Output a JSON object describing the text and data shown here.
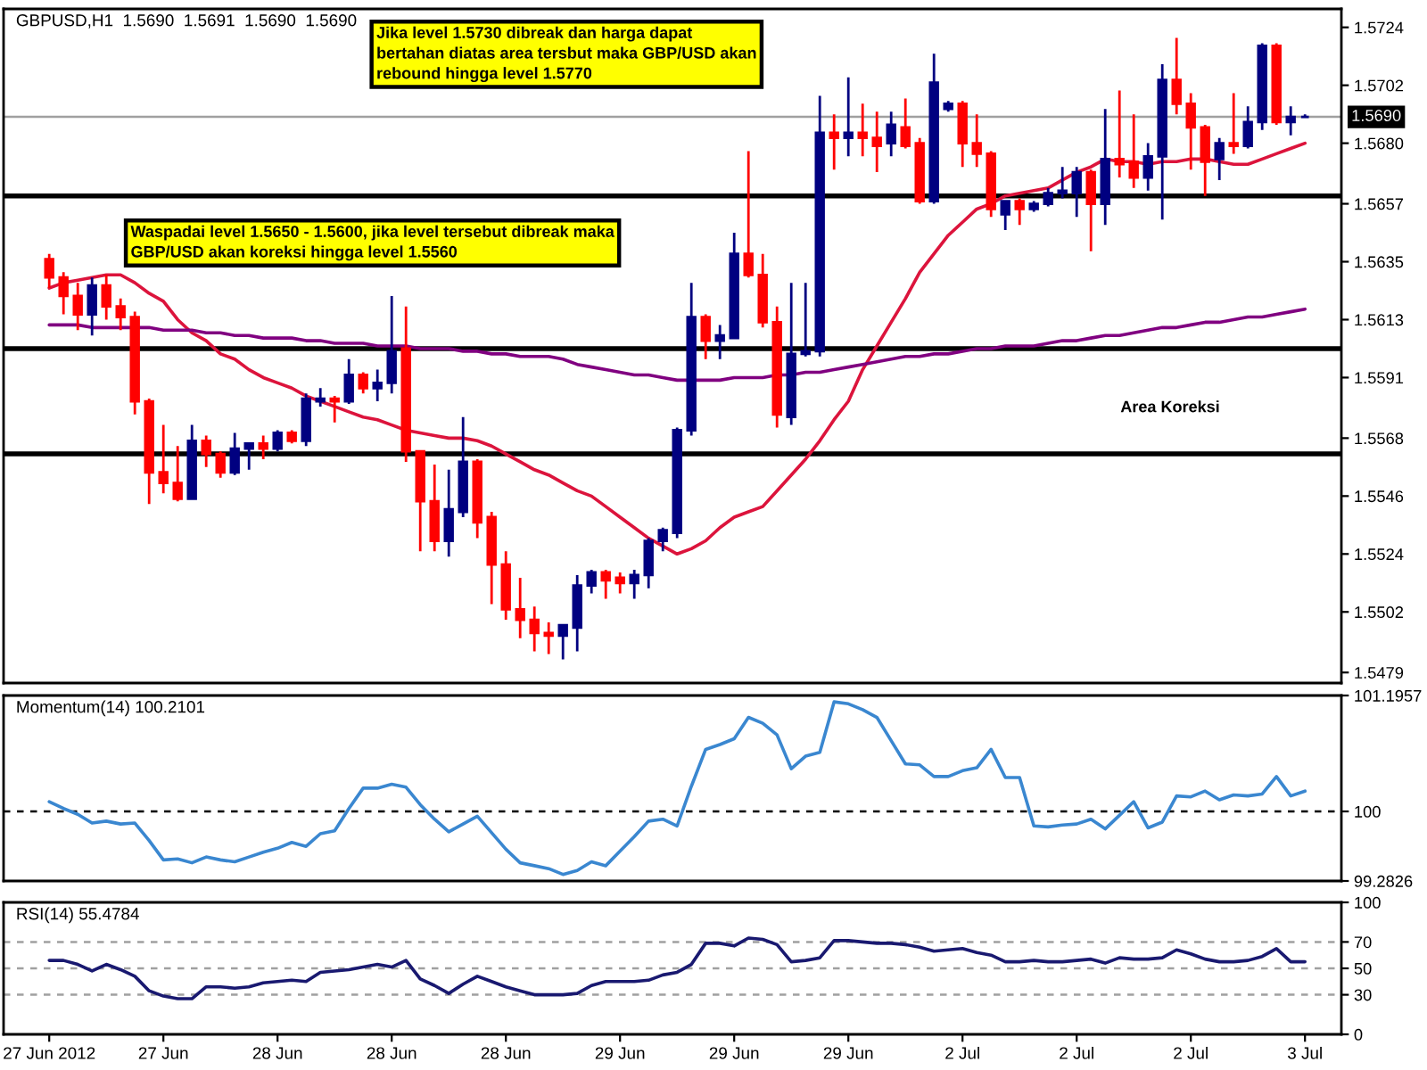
{
  "chart_data": [
    {
      "type": "candlestick",
      "title": "GBPUSD,H1  1.5690  1.5691  1.5690  1.5690",
      "categories": [
        null,
        null,
        null,
        null,
        null,
        null,
        null,
        null,
        null,
        null,
        null,
        null,
        null,
        null,
        null,
        null,
        null,
        null,
        null,
        null,
        null,
        null,
        null,
        null,
        null,
        null,
        null,
        null,
        null,
        null,
        null,
        null,
        null,
        null,
        null,
        null,
        null,
        null,
        null,
        null,
        null,
        null,
        null,
        null,
        null,
        null,
        null,
        null,
        null,
        null,
        null,
        null,
        null,
        null,
        null,
        null,
        null,
        null,
        null,
        null,
        null,
        null,
        null,
        null,
        null,
        null,
        null,
        null,
        null,
        null,
        null,
        null,
        null,
        null,
        null,
        null,
        null,
        null,
        null,
        null,
        null,
        null,
        null,
        null,
        null,
        null,
        null,
        null,
        null
      ],
      "ohlc": [
        [
          1.5636,
          1.5638,
          1.5625,
          1.5629
        ],
        [
          1.5629,
          1.5631,
          1.5615,
          1.5622
        ],
        [
          1.5622,
          1.5627,
          1.5609,
          1.5615
        ],
        [
          1.5615,
          1.5629,
          1.5607,
          1.5626
        ],
        [
          1.5626,
          1.563,
          1.5613,
          1.5618
        ],
        [
          1.5618,
          1.5621,
          1.5609,
          1.5614
        ],
        [
          1.5614,
          1.5616,
          1.5577,
          1.5582
        ],
        [
          1.5582,
          1.5583,
          1.5543,
          1.5555
        ],
        [
          1.5555,
          1.5573,
          1.5547,
          1.5551
        ],
        [
          1.5551,
          1.5565,
          1.5544,
          1.5545
        ],
        [
          1.5545,
          1.5573,
          1.5545,
          1.5567
        ],
        [
          1.5567,
          1.5569,
          1.5557,
          1.5562
        ],
        [
          1.5562,
          1.5563,
          1.5553,
          1.5555
        ],
        [
          1.5555,
          1.557,
          1.5554,
          1.5564
        ],
        [
          1.5564,
          1.5566,
          1.5556,
          1.5566
        ],
        [
          1.5566,
          1.5569,
          1.556,
          1.5564
        ],
        [
          1.5564,
          1.5571,
          1.5563,
          1.557
        ],
        [
          1.557,
          1.5571,
          1.5566,
          1.5567
        ],
        [
          1.5567,
          1.5585,
          1.5565,
          1.5583
        ],
        [
          1.5582,
          1.5587,
          1.558,
          1.5583
        ],
        [
          1.5583,
          1.5584,
          1.5574,
          1.5582
        ],
        [
          1.5582,
          1.5598,
          1.5581,
          1.5592
        ],
        [
          1.5592,
          1.5593,
          1.5585,
          1.5587
        ],
        [
          1.5587,
          1.5594,
          1.5582,
          1.5589
        ],
        [
          1.5589,
          1.5622,
          1.5585,
          1.5601
        ],
        [
          1.5602,
          1.5618,
          1.5559,
          1.5563
        ],
        [
          1.5563,
          1.5563,
          1.5525,
          1.5544
        ],
        [
          1.5544,
          1.5558,
          1.5525,
          1.5529
        ],
        [
          1.5529,
          1.5556,
          1.5523,
          1.5541
        ],
        [
          1.554,
          1.5576,
          1.5538,
          1.5559
        ],
        [
          1.5559,
          1.556,
          1.553,
          1.5536
        ],
        [
          1.5538,
          1.554,
          1.5505,
          1.552
        ],
        [
          1.552,
          1.5525,
          1.5499,
          1.5503
        ],
        [
          1.5503,
          1.5515,
          1.5492,
          1.5499
        ],
        [
          1.5499,
          1.5504,
          1.5487,
          1.5494
        ],
        [
          1.5494,
          1.5498,
          1.5486,
          1.5493
        ],
        [
          1.5493,
          1.5497,
          1.5484,
          1.5497
        ],
        [
          1.5496,
          1.5516,
          1.5487,
          1.5512
        ],
        [
          1.5512,
          1.5518,
          1.5509,
          1.5517
        ],
        [
          1.5517,
          1.5518,
          1.5507,
          1.5514
        ],
        [
          1.5515,
          1.5517,
          1.5509,
          1.5513
        ],
        [
          1.5513,
          1.5518,
          1.5507,
          1.5516
        ],
        [
          1.5516,
          1.553,
          1.5511,
          1.5529
        ],
        [
          1.5529,
          1.5534,
          1.5525,
          1.5533
        ],
        [
          1.5532,
          1.5572,
          1.553,
          1.5571
        ],
        [
          1.5571,
          1.5627,
          1.5569,
          1.5614
        ],
        [
          1.5614,
          1.5615,
          1.5598,
          1.5605
        ],
        [
          1.5605,
          1.5611,
          1.5598,
          1.5607
        ],
        [
          1.5606,
          1.5646,
          1.5606,
          1.5638
        ],
        [
          1.5638,
          1.5677,
          1.5629,
          1.563
        ],
        [
          1.563,
          1.5638,
          1.561,
          1.5612
        ],
        [
          1.5612,
          1.5618,
          1.5572,
          1.5577
        ],
        [
          1.5576,
          1.5627,
          1.5573,
          1.56
        ],
        [
          1.56,
          1.5627,
          1.5599,
          1.5601
        ],
        [
          1.5601,
          1.5698,
          1.5599,
          1.5684
        ],
        [
          1.5684,
          1.5691,
          1.567,
          1.5682
        ],
        [
          1.5682,
          1.5705,
          1.5675,
          1.5684
        ],
        [
          1.5684,
          1.5695,
          1.5675,
          1.5682
        ],
        [
          1.5682,
          1.5692,
          1.5669,
          1.5679
        ],
        [
          1.568,
          1.5692,
          1.5675,
          1.5687
        ],
        [
          1.5686,
          1.5697,
          1.5678,
          1.5679
        ],
        [
          1.568,
          1.5682,
          1.5657,
          1.5658
        ],
        [
          1.5658,
          1.5714,
          1.5657,
          1.5703
        ],
        [
          1.5693,
          1.5696,
          1.5692,
          1.5695
        ],
        [
          1.5695,
          1.5696,
          1.5671,
          1.568
        ],
        [
          1.568,
          1.5691,
          1.5671,
          1.5676
        ],
        [
          1.5676,
          1.5677,
          1.5652,
          1.5655
        ],
        [
          1.5653,
          1.5658,
          1.5647,
          1.5658
        ],
        [
          1.5658,
          1.5659,
          1.5649,
          1.5655
        ],
        [
          1.5655,
          1.5658,
          1.5654,
          1.5657
        ],
        [
          1.5657,
          1.5663,
          1.5656,
          1.5661
        ],
        [
          1.5661,
          1.5671,
          1.5659,
          1.5662
        ],
        [
          1.5661,
          1.5671,
          1.5652,
          1.5669
        ],
        [
          1.5669,
          1.567,
          1.5639,
          1.5657
        ],
        [
          1.5657,
          1.5693,
          1.5649,
          1.5674
        ],
        [
          1.5674,
          1.57,
          1.5667,
          1.5672
        ],
        [
          1.5673,
          1.5691,
          1.5663,
          1.5667
        ],
        [
          1.5667,
          1.568,
          1.5662,
          1.5675
        ],
        [
          1.5675,
          1.571,
          1.5651,
          1.5704
        ],
        [
          1.5704,
          1.572,
          1.5691,
          1.5695
        ],
        [
          1.5695,
          1.5699,
          1.567,
          1.5686
        ],
        [
          1.5686,
          1.5687,
          1.566,
          1.5673
        ],
        [
          1.5674,
          1.5682,
          1.5666,
          1.568
        ],
        [
          1.568,
          1.5699,
          1.5676,
          1.5679
        ],
        [
          1.5679,
          1.5694,
          1.5678,
          1.5688
        ],
        [
          1.5688,
          1.5718,
          1.5685,
          1.5717
        ],
        [
          1.5717,
          1.5718,
          1.5687,
          1.5688
        ],
        [
          1.5688,
          1.5694,
          1.5683,
          1.569
        ],
        [
          1.569,
          1.5691,
          1.569,
          1.569
        ]
      ],
      "colors": [
        "#ff0000",
        "#ff0000",
        "#ff0000",
        "#000080",
        "#ff0000",
        "#ff0000",
        "#ff0000",
        "#ff0000",
        "#ff0000",
        "#ff0000",
        "#000080",
        "#ff0000",
        "#ff0000",
        "#000080",
        "#000080",
        "#ff0000",
        "#000080",
        "#ff0000",
        "#000080",
        "#000080",
        "#ff0000",
        "#000080",
        "#ff0000",
        "#000080",
        "#000080",
        "#ff0000",
        "#ff0000",
        "#ff0000",
        "#000080",
        "#000080",
        "#ff0000",
        "#ff0000",
        "#ff0000",
        "#ff0000",
        "#ff0000",
        "#ff0000",
        "#000080",
        "#000080",
        "#000080",
        "#ff0000",
        "#ff0000",
        "#000080",
        "#000080",
        "#000080",
        "#000080",
        "#000080",
        "#ff0000",
        "#000080",
        "#000080",
        "#ff0000",
        "#ff0000",
        "#ff0000",
        "#000080",
        "#000080",
        "#000080",
        "#ff0000",
        "#000080",
        "#ff0000",
        "#ff0000",
        "#000080",
        "#ff0000",
        "#ff0000",
        "#000080",
        "#000080",
        "#ff0000",
        "#ff0000",
        "#ff0000",
        "#000080",
        "#ff0000",
        "#000080",
        "#000080",
        "#000080",
        "#000080",
        "#ff0000",
        "#000080",
        "#ff0000",
        "#ff0000",
        "#000080",
        "#000080",
        "#ff0000",
        "#ff0000",
        "#ff0000",
        "#000080",
        "#ff0000",
        "#000080",
        "#000080",
        "#ff0000",
        "#000080",
        "#000080"
      ],
      "series": [
        {
          "type": "line",
          "color": "#dc143c",
          "values": [
            1.5625,
            1.5627,
            1.5628,
            1.5629,
            1.563,
            1.563,
            1.5627,
            1.5623,
            1.562,
            1.5613,
            1.5608,
            1.5605,
            1.56,
            1.5598,
            1.5594,
            1.5591,
            1.5589,
            1.5587,
            1.5584,
            1.5582,
            1.558,
            1.5578,
            1.5576,
            1.5575,
            1.5573,
            1.5571,
            1.557,
            1.5569,
            1.5568,
            1.5568,
            1.5567,
            1.5565,
            1.5562,
            1.5559,
            1.5556,
            1.5554,
            1.5551,
            1.5548,
            1.5546,
            1.5542,
            1.5538,
            1.5534,
            1.553,
            1.5527,
            1.5524,
            1.5526,
            1.5529,
            1.5534,
            1.5538,
            1.554,
            1.5542,
            1.5548,
            1.5554,
            1.556,
            1.5567,
            1.5575,
            1.5582,
            1.5594,
            1.5603,
            1.5612,
            1.5621,
            1.5631,
            1.5638,
            1.5645,
            1.565,
            1.5655,
            1.5657,
            1.566,
            1.5661,
            1.5662,
            1.5663,
            1.5666,
            1.5669,
            1.5671,
            1.5674,
            1.5673,
            1.5673,
            1.5672,
            1.5673,
            1.5673,
            1.5674,
            1.5674,
            1.5673,
            1.5672,
            1.5672,
            1.5674,
            1.5676,
            1.5678,
            1.568
          ]
        },
        {
          "type": "line",
          "color": "#800080",
          "values": [
            1.5611,
            1.5611,
            1.5611,
            1.561,
            1.561,
            1.561,
            1.561,
            1.561,
            1.5609,
            1.5609,
            1.5609,
            1.5608,
            1.5608,
            1.5607,
            1.5607,
            1.5606,
            1.5606,
            1.5606,
            1.5605,
            1.5605,
            1.5604,
            1.5604,
            1.5604,
            1.5603,
            1.5603,
            1.5603,
            1.5602,
            1.5602,
            1.5602,
            1.5601,
            1.5601,
            1.56,
            1.56,
            1.5599,
            1.5599,
            1.5599,
            1.5598,
            1.5596,
            1.5595,
            1.5594,
            1.5593,
            1.5592,
            1.5592,
            1.5591,
            1.559,
            1.559,
            1.559,
            1.559,
            1.5591,
            1.5591,
            1.5591,
            1.5592,
            1.5592,
            1.5593,
            1.5593,
            1.5594,
            1.5595,
            1.5596,
            1.5597,
            1.5598,
            1.5599,
            1.5599,
            1.56,
            1.56,
            1.5601,
            1.5602,
            1.5602,
            1.5603,
            1.5603,
            1.5603,
            1.5604,
            1.5605,
            1.5605,
            1.5606,
            1.5607,
            1.5607,
            1.5608,
            1.5609,
            1.561,
            1.561,
            1.5611,
            1.5612,
            1.5612,
            1.5613,
            1.5614,
            1.5614,
            1.5615,
            1.5616,
            1.5617
          ]
        }
      ],
      "ylim": [
        1.5475,
        1.5731
      ],
      "yticks": [
        1.5479,
        1.5502,
        1.5524,
        1.5546,
        1.5568,
        1.5591,
        1.5613,
        1.5635,
        1.5657,
        {
          "value": 1.568,
          "label": "1.5680"
        },
        1.5702,
        1.5724
      ],
      "ref_lines": [
        {
          "axis": "y",
          "value": 1.566,
          "color": "#000000"
        },
        {
          "axis": "y",
          "value": 1.5602,
          "color": "#000000"
        },
        {
          "axis": "y",
          "value": 1.5562,
          "color": "#000000"
        },
        {
          "axis": "y",
          "value": 1.569,
          "label": "1.5690",
          "color": "#a0a0a0"
        }
      ],
      "annotations": [
        "Jika level 1.5730 dibreak dan harga dapat\nbertahan diatas area tersbut maka GBP/USD akan\nrebound hingga level 1.5770",
        "Waspadai level 1.5650 - 1.5600, jika level tersebut dibreak maka\nGBP/USD akan koreksi hingga level 1.5560",
        "Area Koreksi"
      ]
    },
    {
      "type": "line",
      "title": "Momentum(14) 100.2101",
      "categories": [
        null,
        null,
        null,
        null,
        null,
        null,
        null,
        null,
        null,
        null,
        null,
        null,
        null,
        null,
        null,
        null,
        null,
        null,
        null,
        null,
        null,
        null,
        null,
        null,
        null,
        null,
        null,
        null,
        null,
        null,
        null,
        null,
        null,
        null,
        null,
        null,
        null,
        null,
        null,
        null,
        null,
        null,
        null,
        null,
        null,
        null,
        null,
        null,
        null,
        null,
        null,
        null,
        null,
        null,
        null,
        null,
        null,
        null,
        null,
        null,
        null,
        null,
        null,
        null,
        null,
        null,
        null,
        null,
        null,
        null,
        null,
        null,
        null,
        null,
        null,
        null,
        null,
        null,
        null,
        null,
        null,
        null,
        null,
        null,
        null,
        null,
        null,
        null,
        null
      ],
      "series": [
        {
          "color": "#3a87d0",
          "values": [
            100.1,
            100.03,
            99.97,
            99.88,
            99.9,
            99.87,
            99.88,
            99.7,
            99.5,
            99.51,
            99.47,
            99.53,
            99.5,
            99.48,
            99.53,
            99.58,
            99.62,
            99.68,
            99.64,
            99.77,
            99.8,
            100.03,
            100.24,
            100.24,
            100.28,
            100.25,
            100.07,
            99.92,
            99.79,
            99.87,
            99.95,
            99.78,
            99.61,
            99.47,
            99.44,
            99.41,
            99.35,
            99.39,
            99.48,
            99.44,
            99.59,
            99.74,
            99.9,
            99.92,
            99.85,
            100.26,
            100.64,
            100.69,
            100.75,
            100.97,
            100.91,
            100.79,
            100.44,
            100.57,
            100.61,
            101.13,
            101.11,
            101.05,
            100.97,
            100.73,
            100.49,
            100.48,
            100.36,
            100.36,
            100.42,
            100.45,
            100.64,
            100.35,
            100.35,
            99.85,
            99.84,
            99.86,
            99.87,
            99.92,
            99.82,
            99.96,
            100.1,
            99.83,
            99.89,
            100.16,
            100.15,
            100.21,
            100.12,
            100.17,
            100.16,
            100.18,
            100.36,
            100.16,
            100.21
          ]
        }
      ],
      "ylim": [
        99.2826,
        101.1957
      ],
      "yticks": [
        99.2826,
        100,
        101.1957
      ],
      "ref_lines": [
        {
          "axis": "y",
          "value": 100,
          "color": "#000000",
          "line_style": "dashed"
        }
      ]
    },
    {
      "type": "line",
      "title": "RSI(14) 55.4784",
      "categories": [
        "27 Jun 2012",
        null,
        null,
        null,
        null,
        null,
        null,
        null,
        "27 Jun",
        null,
        null,
        null,
        null,
        null,
        null,
        null,
        "28 Jun",
        null,
        null,
        null,
        null,
        null,
        null,
        null,
        "28 Jun",
        null,
        null,
        null,
        null,
        null,
        null,
        null,
        "28 Jun",
        null,
        null,
        null,
        null,
        null,
        null,
        null,
        "29 Jun",
        null,
        null,
        null,
        null,
        null,
        null,
        null,
        "29 Jun",
        null,
        null,
        null,
        null,
        null,
        null,
        null,
        "29 Jun",
        null,
        null,
        null,
        null,
        null,
        null,
        null,
        "2 Jul",
        null,
        null,
        null,
        null,
        null,
        null,
        null,
        "2 Jul",
        null,
        null,
        null,
        null,
        null,
        null,
        null,
        "2 Jul",
        null,
        null,
        null,
        null,
        null,
        null,
        null,
        "3 Jul"
      ],
      "series": [
        {
          "color": "#191970",
          "values": [
            56,
            56,
            53,
            48,
            53,
            49,
            44,
            33,
            29,
            27,
            27,
            36,
            36,
            35,
            36,
            39,
            40,
            41,
            40,
            47,
            48,
            49,
            51,
            53,
            51,
            56,
            42,
            37,
            31,
            38,
            44,
            40,
            36,
            33,
            30,
            30,
            30,
            31,
            37,
            40,
            40,
            40,
            41,
            45,
            47,
            53,
            69,
            69,
            67,
            73,
            72,
            68,
            55,
            56,
            58,
            71,
            71,
            70,
            69,
            69,
            68,
            66,
            63,
            64,
            65,
            62,
            60,
            55,
            55,
            56,
            55,
            55,
            56,
            57,
            54,
            58,
            57,
            57,
            58,
            64,
            61,
            57,
            55,
            55,
            56,
            59,
            65,
            55,
            55
          ]
        }
      ],
      "ylim": [
        0,
        100
      ],
      "yticks": [
        0,
        30,
        50,
        70,
        100
      ],
      "ref_lines": [
        {
          "axis": "y",
          "value": 70,
          "color": "#a0a0a0",
          "line_style": "dashed"
        },
        {
          "axis": "y",
          "value": 50,
          "color": "#a0a0a0",
          "line_style": "dashed"
        },
        {
          "axis": "y",
          "value": 30,
          "color": "#a0a0a0",
          "line_style": "dashed"
        }
      ]
    }
  ]
}
